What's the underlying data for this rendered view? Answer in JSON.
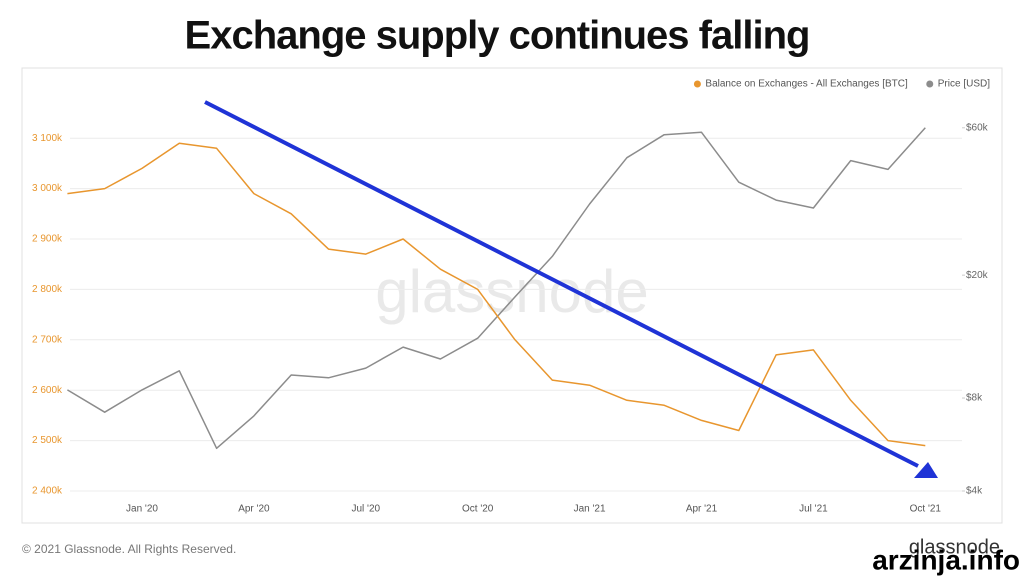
{
  "chart_data": {
    "type": "line",
    "title": "Exchange supply continues falling",
    "watermark": "glassnode",
    "categories": [
      null,
      null,
      "Jan '20",
      null,
      null,
      "Apr '20",
      null,
      null,
      "Jul '20",
      null,
      null,
      "Oct '20",
      null,
      null,
      "Jan '21",
      null,
      null,
      "Apr '21",
      null,
      null,
      "Jul '21",
      null,
      null,
      "Oct '21"
    ],
    "series": [
      {
        "name": "Balance on Exchanges - All Exchanges [BTC]",
        "color": "#e8962e",
        "axis": "y",
        "values": [
          2990000,
          3000000,
          3040000,
          3090000,
          3080000,
          2990000,
          2950000,
          2880000,
          2870000,
          2900000,
          2840000,
          2800000,
          2700000,
          2620000,
          2610000,
          2580000,
          2570000,
          2540000,
          2520000,
          2670000,
          2680000,
          2580000,
          2500000,
          2490000
        ]
      },
      {
        "name": "Price [USD]",
        "color": "#8c8c8c",
        "axis": "y2",
        "values": [
          8500,
          7200,
          8500,
          9800,
          5500,
          7000,
          9500,
          9300,
          10000,
          11700,
          10700,
          12500,
          17000,
          23000,
          34000,
          48000,
          57000,
          58000,
          40000,
          35000,
          33000,
          47000,
          44000,
          60000
        ]
      }
    ],
    "ylim": [
      2400000,
      3150000
    ],
    "yticks": [
      {
        "value": 2400000,
        "label": "2 400k"
      },
      {
        "value": 2500000,
        "label": "2 500k"
      },
      {
        "value": 2600000,
        "label": "2 600k"
      },
      {
        "value": 2700000,
        "label": "2 700k"
      },
      {
        "value": 2800000,
        "label": "2 800k"
      },
      {
        "value": 2900000,
        "label": "2 900k"
      },
      {
        "value": 3000000,
        "label": "3 000k"
      },
      {
        "value": 3100000,
        "label": "3 100k"
      }
    ],
    "y2lim": [
      4000,
      67000
    ],
    "y2ticks": [
      {
        "value": 4000,
        "label": "$4k"
      },
      {
        "value": 8000,
        "label": "$8k"
      },
      {
        "value": 20000,
        "label": "$20k"
      },
      {
        "value": 60000,
        "label": "$60k"
      }
    ],
    "y2scale": "log",
    "grid": true,
    "legend": "top-right"
  },
  "copyright": "© 2021 Glassnode. All Rights Reserved.",
  "logo": "glassnode",
  "site_watermark": "arzinja.info"
}
